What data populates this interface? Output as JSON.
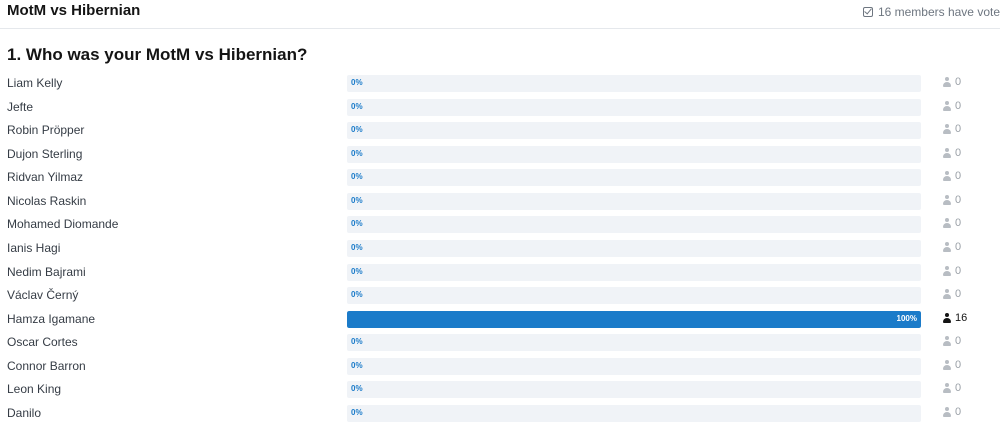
{
  "poll": {
    "title": "MotM vs Hibernian",
    "voters_text": "16 members have vote"
  },
  "question": "1. Who was your MotM vs Hibernian?",
  "choices": [
    {
      "name": "Liam Kelly",
      "percent": 0,
      "percent_label": "0%",
      "votes": "0"
    },
    {
      "name": "Jefte",
      "percent": 0,
      "percent_label": "0%",
      "votes": "0"
    },
    {
      "name": "Robin Pröpper",
      "percent": 0,
      "percent_label": "0%",
      "votes": "0"
    },
    {
      "name": "Dujon Sterling",
      "percent": 0,
      "percent_label": "0%",
      "votes": "0"
    },
    {
      "name": "Ridvan Yilmaz",
      "percent": 0,
      "percent_label": "0%",
      "votes": "0"
    },
    {
      "name": "Nicolas Raskin",
      "percent": 0,
      "percent_label": "0%",
      "votes": "0"
    },
    {
      "name": "Mohamed Diomande",
      "percent": 0,
      "percent_label": "0%",
      "votes": "0"
    },
    {
      "name": "Ianis Hagi",
      "percent": 0,
      "percent_label": "0%",
      "votes": "0"
    },
    {
      "name": "Nedim Bajrami",
      "percent": 0,
      "percent_label": "0%",
      "votes": "0"
    },
    {
      "name": "Václav Černý",
      "percent": 0,
      "percent_label": "0%",
      "votes": "0"
    },
    {
      "name": "Hamza Igamane",
      "percent": 100,
      "percent_label": "100%",
      "votes": "16"
    },
    {
      "name": "Oscar Cortes",
      "percent": 0,
      "percent_label": "0%",
      "votes": "0"
    },
    {
      "name": "Connor Barron",
      "percent": 0,
      "percent_label": "0%",
      "votes": "0"
    },
    {
      "name": "Leon King",
      "percent": 0,
      "percent_label": "0%",
      "votes": "0"
    },
    {
      "name": "Danilo",
      "percent": 0,
      "percent_label": "0%",
      "votes": "0"
    }
  ],
  "colors": {
    "bar_fill": "#1b7bc9",
    "bar_track": "#f0f3f7"
  }
}
